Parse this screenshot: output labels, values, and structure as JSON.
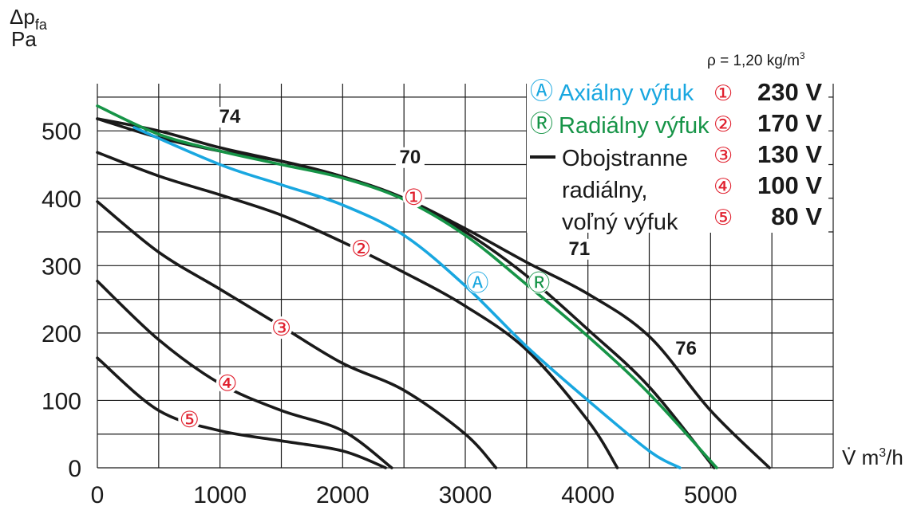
{
  "chart_data": {
    "type": "line",
    "ylabel": "Δp",
    "ylabel_sub": "fa",
    "yunit": "Pa",
    "xlabel": "V̇ m",
    "xlabel_sup": "3",
    "xlabel_unit": "/h",
    "density_note": {
      "prefix": "ρ = 1,20 kg/m",
      "sup": "3"
    },
    "xlim": [
      0,
      6000
    ],
    "ylim": [
      0,
      570
    ],
    "xticks": [
      0,
      1000,
      2000,
      3000,
      4000,
      5000
    ],
    "xtick_labels": [
      "0",
      "1000",
      "2000",
      "3000",
      "4000",
      "5000"
    ],
    "yticks": [
      0,
      100,
      200,
      300,
      400,
      500
    ],
    "ytick_labels": [
      "0",
      "100",
      "200",
      "300",
      "400",
      "500"
    ],
    "grid": true,
    "series": [
      {
        "name": "Axiálny výfuk",
        "color": "#19a7e0",
        "x": [
          300,
          1000,
          1500,
          2000,
          2500,
          3000,
          3500,
          4000,
          4500,
          4750
        ],
        "y": [
          505,
          450,
          420,
          390,
          345,
          270,
          180,
          100,
          25,
          0
        ]
      },
      {
        "name": "Radiálny výfuk",
        "color": "#169447",
        "x": [
          0,
          500,
          1000,
          1500,
          2000,
          2500,
          3000,
          3500,
          4000,
          4500,
          5050
        ],
        "y": [
          537,
          495,
          470,
          450,
          430,
          398,
          345,
          272,
          195,
          110,
          0
        ]
      },
      {
        "name": "Obojstranne radiálny, voľný výfuk",
        "color": "#1a1a1a",
        "x": [
          0,
          500,
          1000,
          1500,
          2000,
          2500,
          3000,
          3500,
          4000,
          4500,
          5000,
          5480
        ],
        "y": [
          518,
          490,
          470,
          455,
          432,
          400,
          355,
          305,
          258,
          195,
          85,
          0
        ]
      },
      {
        "name": "230 V",
        "color": "#1a1a1a",
        "x": [
          0,
          500,
          1000,
          1500,
          2000,
          2500,
          3000,
          3500,
          4000,
          4500,
          5030
        ],
        "y": [
          518,
          500,
          475,
          455,
          432,
          400,
          350,
          285,
          205,
          120,
          0
        ]
      },
      {
        "name": "170 V",
        "color": "#1a1a1a",
        "x": [
          0,
          500,
          1000,
          1500,
          2000,
          2500,
          3000,
          3500,
          4000,
          4240
        ],
        "y": [
          468,
          433,
          405,
          375,
          335,
          290,
          240,
          175,
          70,
          0
        ]
      },
      {
        "name": "130 V",
        "color": "#1a1a1a",
        "x": [
          0,
          500,
          1000,
          1500,
          2000,
          2500,
          3000,
          3250
        ],
        "y": [
          395,
          320,
          265,
          210,
          155,
          115,
          50,
          0
        ]
      },
      {
        "name": "100 V",
        "color": "#1a1a1a",
        "x": [
          0,
          500,
          1000,
          1500,
          2000,
          2400
        ],
        "y": [
          277,
          190,
          125,
          85,
          55,
          0
        ]
      },
      {
        "name": "80 V",
        "color": "#1a1a1a",
        "x": [
          0,
          500,
          1000,
          1500,
          2000,
          2350
        ],
        "y": [
          163,
          85,
          55,
          40,
          25,
          0
        ]
      }
    ],
    "curve_markers": [
      {
        "text": "Ⓐ",
        "color": "#19a7e0",
        "x": 3100,
        "y": 275
      },
      {
        "text": "Ⓡ",
        "color": "#169447",
        "x": 3600,
        "y": 275
      },
      {
        "text": "①",
        "color": "#e0202e",
        "x": 2580,
        "y": 402
      },
      {
        "text": "②",
        "color": "#e0202e",
        "x": 2150,
        "y": 326
      },
      {
        "text": "③",
        "color": "#e0202e",
        "x": 1500,
        "y": 208
      },
      {
        "text": "④",
        "color": "#e0202e",
        "x": 1060,
        "y": 126
      },
      {
        "text": "⑤",
        "color": "#e0202e",
        "x": 750,
        "y": 72
      }
    ],
    "level_labels": [
      {
        "text": "74",
        "x": 1080,
        "y": 512
      },
      {
        "text": "70",
        "x": 2550,
        "y": 452
      },
      {
        "text": "71",
        "x": 3930,
        "y": 316
      },
      {
        "text": "76",
        "x": 4800,
        "y": 168
      }
    ],
    "legend": {
      "position": "top-right",
      "types": [
        {
          "symbol": "Ⓐ",
          "label": "Axiálny výfuk",
          "color": "#19a7e0"
        },
        {
          "symbol": "Ⓡ",
          "label": "Radiálny výfuk",
          "color": "#169447"
        },
        {
          "symbol": "line",
          "lines": [
            "Obojstranne",
            "radiálny,",
            "voľný výfuk"
          ],
          "color": "#1a1a1a"
        }
      ],
      "voltages": [
        {
          "symbol": "①",
          "label": "230 V"
        },
        {
          "symbol": "②",
          "label": "170 V"
        },
        {
          "symbol": "③",
          "label": "130 V"
        },
        {
          "symbol": "④",
          "label": "100 V"
        },
        {
          "symbol": "⑤",
          "label": "80 V"
        }
      ],
      "voltage_symbol_color": "#e0202e"
    }
  }
}
